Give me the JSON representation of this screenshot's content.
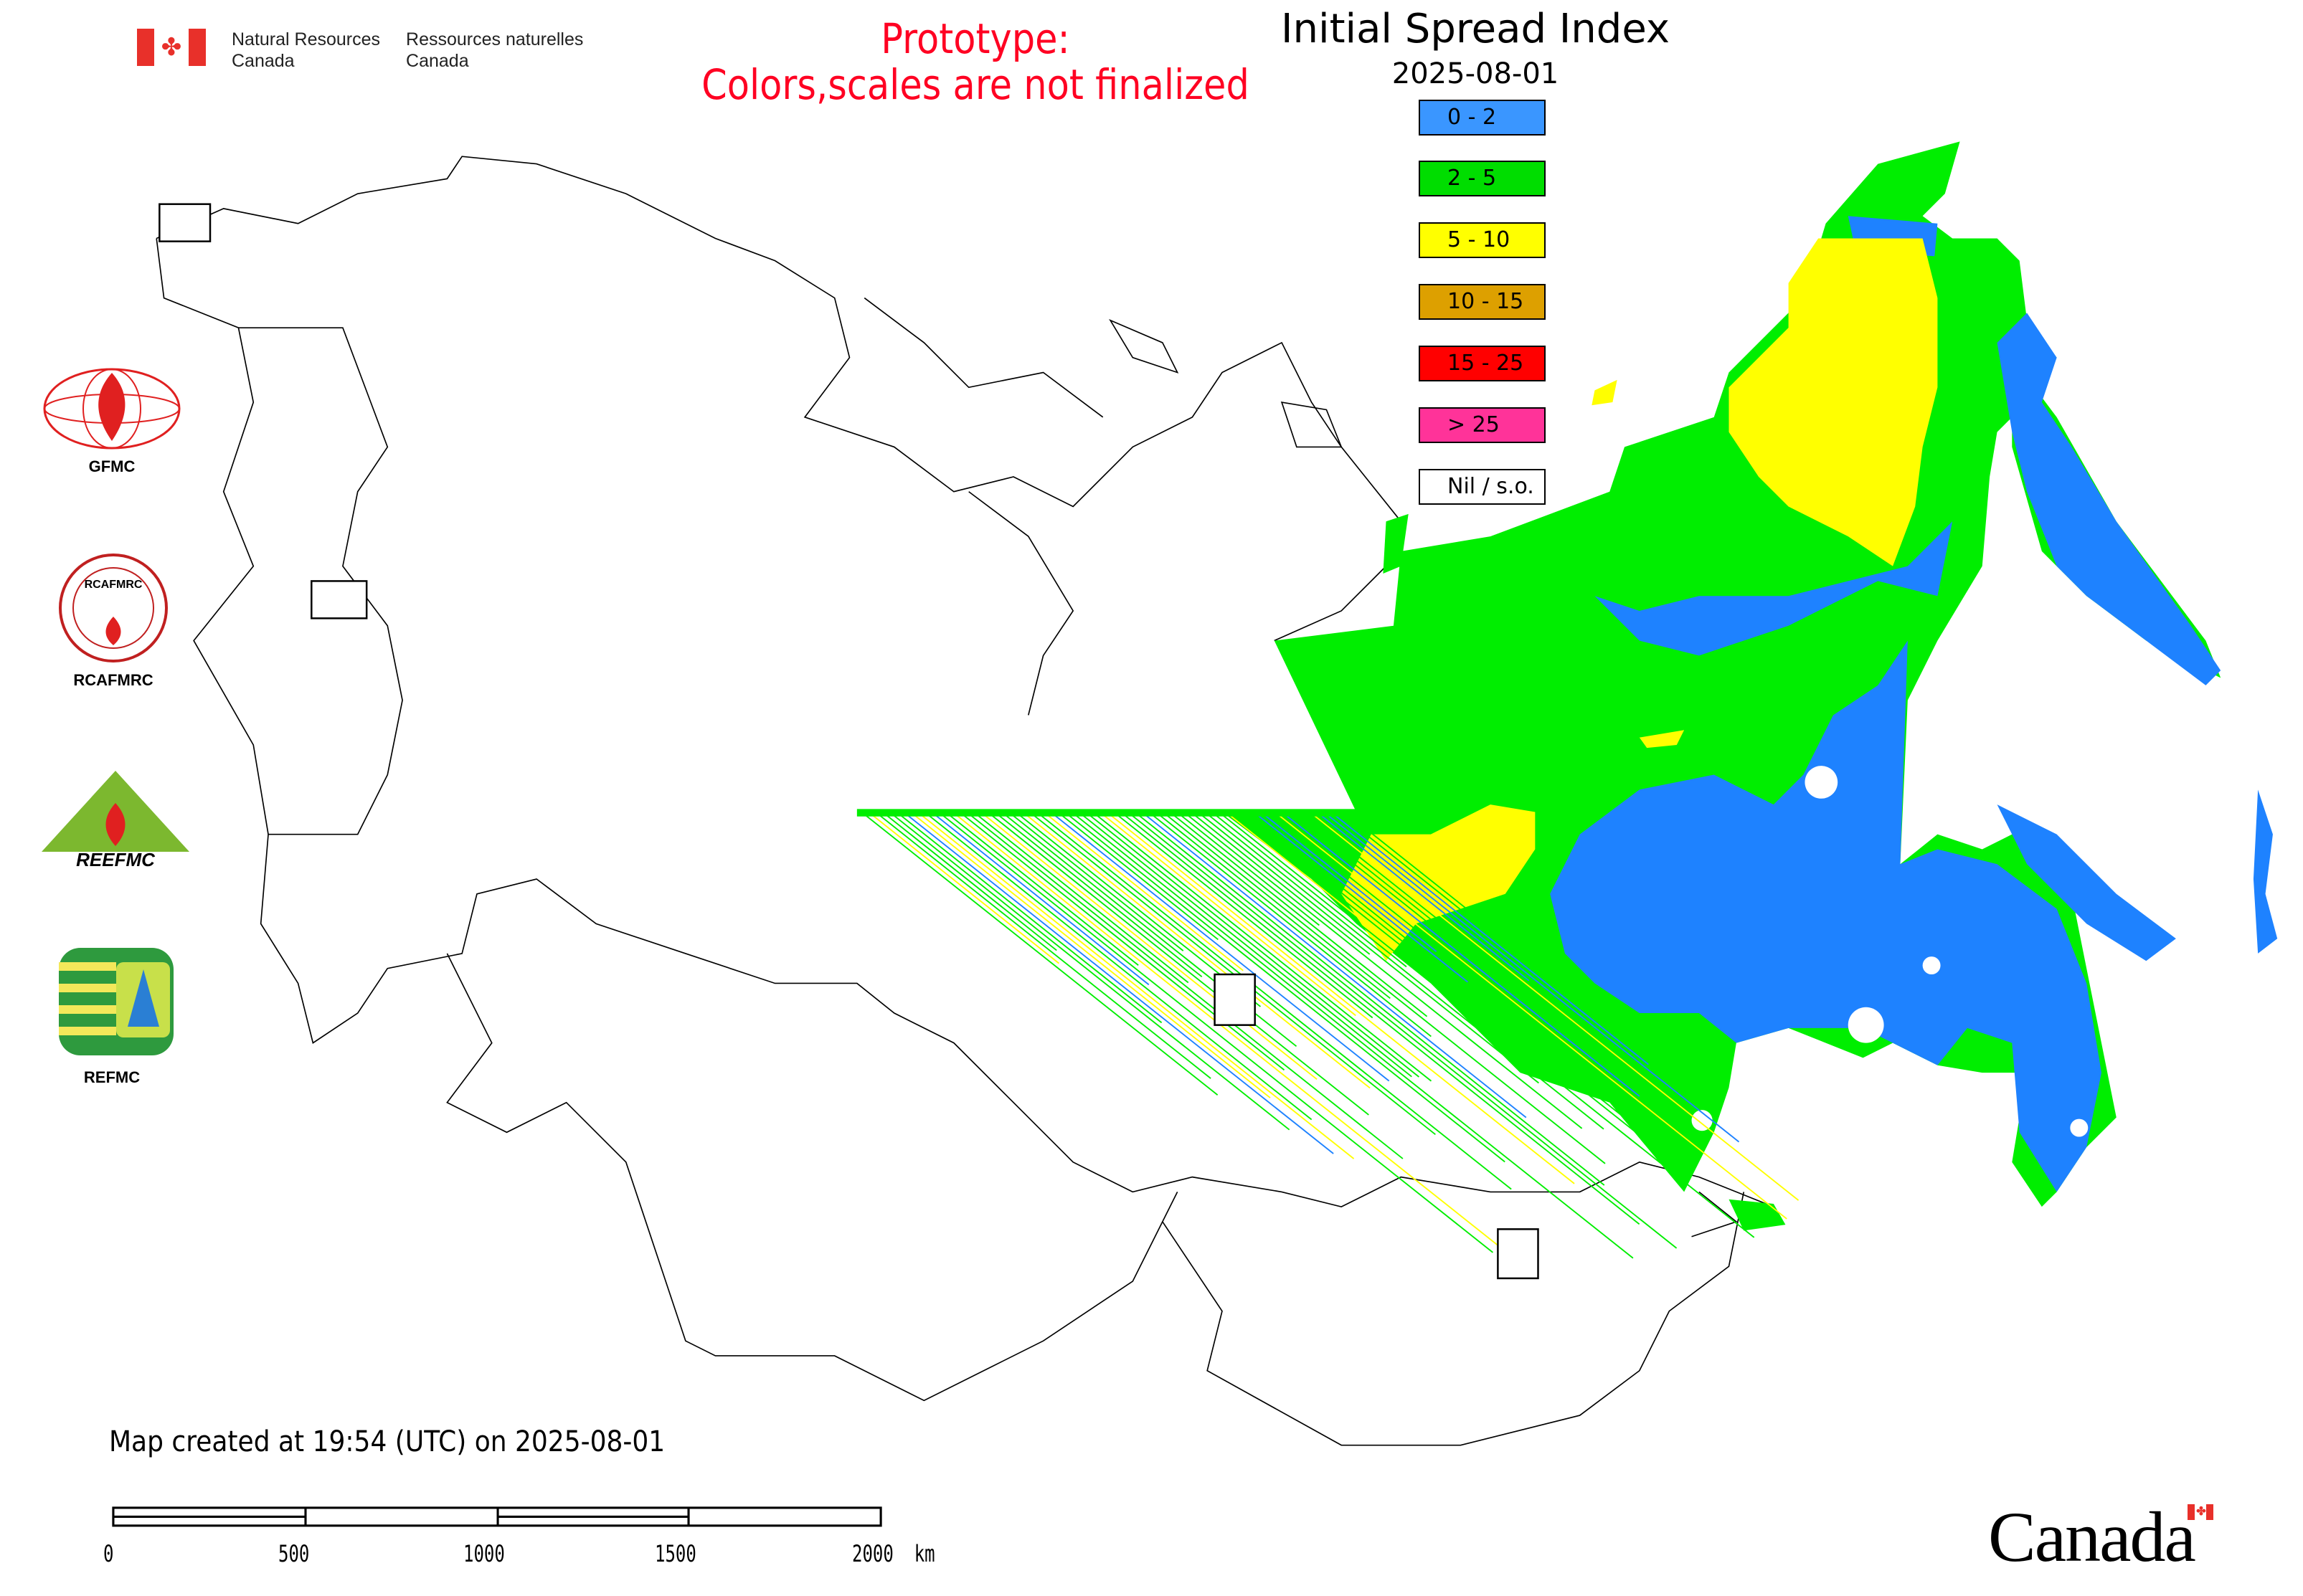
{
  "header": {
    "org_en_line1": "Natural Resources",
    "org_en_line2": "Canada",
    "org_fr_line1": "Ressources naturelles",
    "org_fr_line2": "Canada",
    "prototype_line1": "Prototype:",
    "prototype_line2": "Colors,scales are not finalized",
    "title": "Initial Spread Index",
    "date": "2025-08-01"
  },
  "legend": [
    {
      "label": "0 - 2",
      "color": "#3a96ff"
    },
    {
      "label": "2 - 5",
      "color": "#00dd00"
    },
    {
      "label": "5 - 10",
      "color": "#ffff00"
    },
    {
      "label": "10 - 15",
      "color": "#dda000"
    },
    {
      "label": "15 - 25",
      "color": "#ff0000"
    },
    {
      "label": "> 25",
      "color": "#ff3399"
    },
    {
      "label": "Nil / s.o.",
      "color": "#ffffff"
    }
  ],
  "logos": {
    "gfmc": "GFMC",
    "rcafmrc": "RCAFMRC",
    "reefmc_wordmark": "REEFMC",
    "refmc": "REFMC"
  },
  "footer": {
    "created": "Map created at 19:54 (UTC) on 2025-08-01",
    "scale_labels": [
      "0",
      "500",
      "1000",
      "1500",
      "2000  km"
    ],
    "canada_wordmark": "Canada"
  },
  "colors": {
    "prototype": "#ff0022",
    "map_green": "#00ee00",
    "map_blue": "#1e82ff",
    "map_yellow": "#ffff00"
  }
}
